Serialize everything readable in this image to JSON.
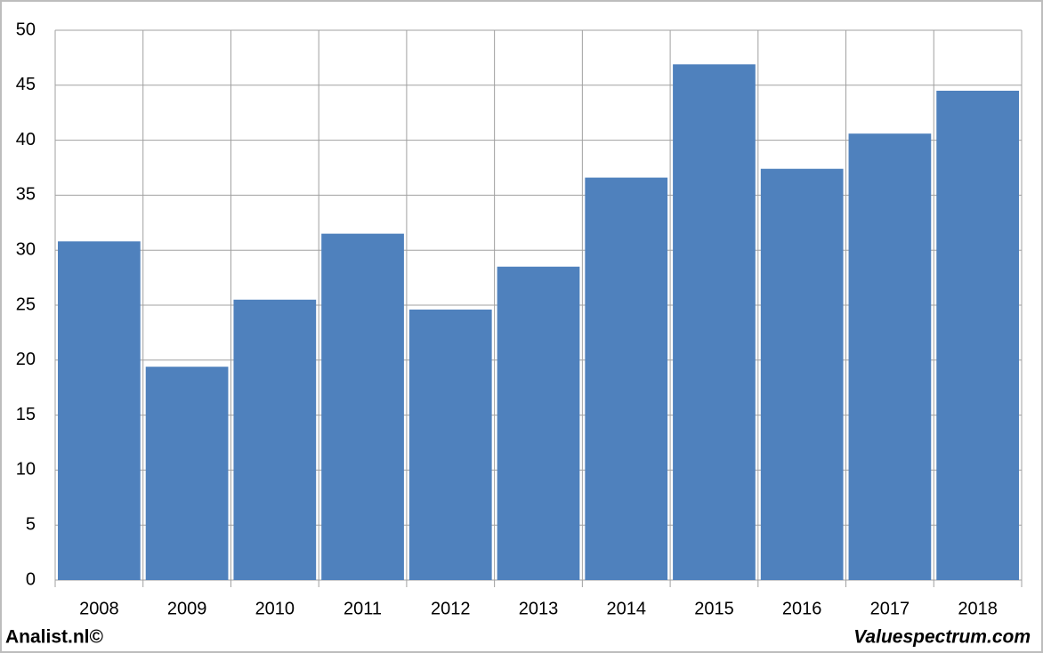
{
  "chart_data": {
    "type": "bar",
    "categories": [
      "2008",
      "2009",
      "2010",
      "2011",
      "2012",
      "2013",
      "2014",
      "2015",
      "2016",
      "2017",
      "2018"
    ],
    "values": [
      30.8,
      19.4,
      25.5,
      31.5,
      24.6,
      28.5,
      36.6,
      46.9,
      37.4,
      40.6,
      44.5
    ],
    "color": "#4f81bd",
    "ylim": [
      0,
      50
    ],
    "yticks": [
      0,
      5,
      10,
      15,
      20,
      25,
      30,
      35,
      40,
      45,
      50
    ],
    "grid": true,
    "source": "Analist.nl©",
    "credit": "Valuespectrum.com"
  }
}
